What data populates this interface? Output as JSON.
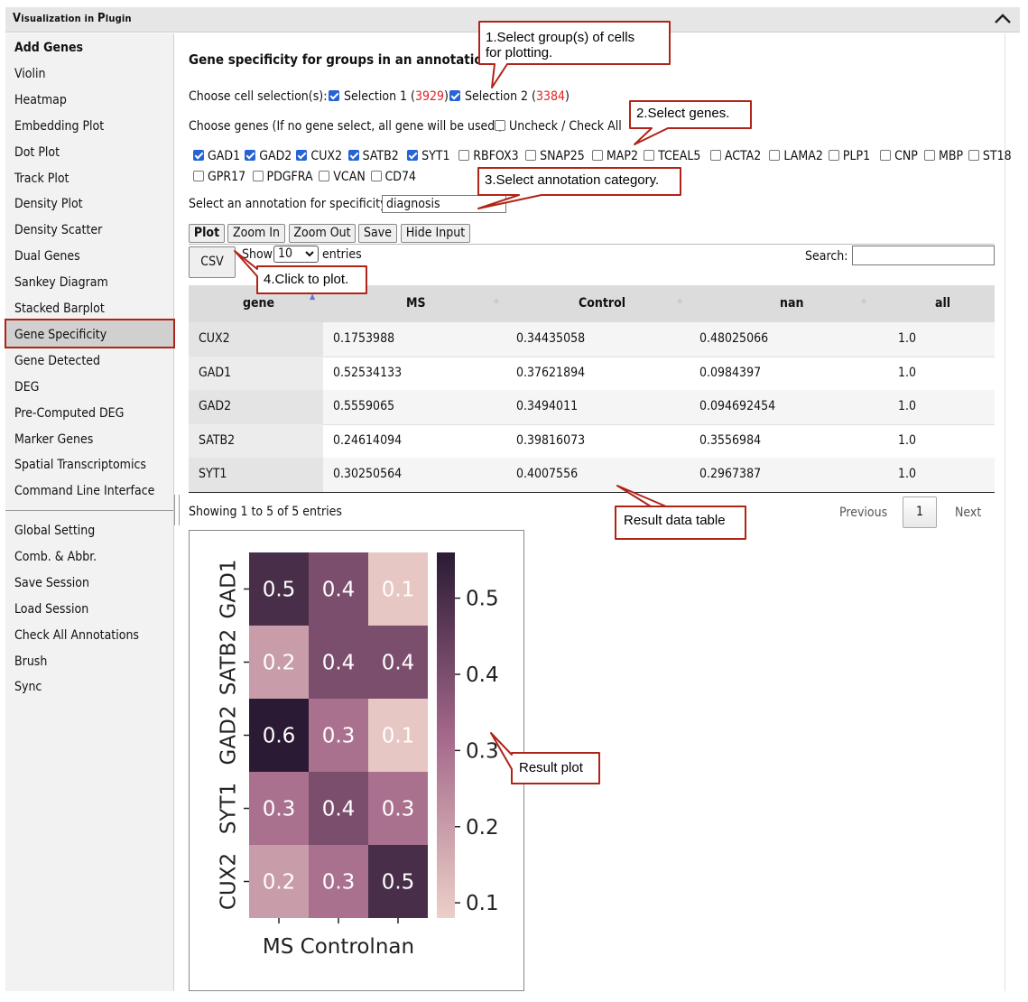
{
  "panel": {
    "title_first": "V",
    "title_rest": "isualization in ",
    "title_p": "P",
    "title_rest2": "lugin"
  },
  "sidebar": {
    "items": [
      "Add Genes",
      "Violin",
      "Heatmap",
      "Embedding Plot",
      "Dot Plot",
      "Track Plot",
      "Density Plot",
      "Density Scatter",
      "Dual Genes",
      "Sankey Diagram",
      "Stacked Barplot",
      "Gene Specificity",
      "Gene Detected",
      "DEG",
      "Pre-Computed DEG",
      "Marker Genes",
      "Spatial Transcriptomics",
      "Command Line Interface"
    ],
    "items2": [
      "Global Setting",
      "Comb. & Abbr.",
      "Save Session",
      "Load Session",
      "Check All Annotations",
      "Brush",
      "Sync"
    ],
    "active": "Gene Specificity"
  },
  "main": {
    "heading": "Gene specificity for groups in an annotation",
    "cell_selection_label": "Choose cell selection(s):",
    "selections": [
      {
        "label": "Selection 1",
        "count": "3929",
        "checked": true
      },
      {
        "label": "Selection 2",
        "count": "3384",
        "checked": true
      }
    ],
    "genes_label": "Choose genes (If no gene select, all gene will be used.):",
    "uncheck_label": "Uncheck / Check All",
    "genes_row1": [
      {
        "name": "GAD1",
        "checked": true
      },
      {
        "name": "GAD2",
        "checked": true
      },
      {
        "name": "CUX2",
        "checked": true
      },
      {
        "name": "SATB2",
        "checked": true
      },
      {
        "name": "SYT1",
        "checked": true
      },
      {
        "name": "RBFOX3",
        "checked": false
      },
      {
        "name": "SNAP25",
        "checked": false
      },
      {
        "name": "MAP2",
        "checked": false
      },
      {
        "name": "TCEAL5",
        "checked": false
      },
      {
        "name": "ACTA2",
        "checked": false
      },
      {
        "name": "LAMA2",
        "checked": false
      },
      {
        "name": "PLP1",
        "checked": false
      },
      {
        "name": "CNP",
        "checked": false
      },
      {
        "name": "MBP",
        "checked": false
      },
      {
        "name": "ST18",
        "checked": false
      }
    ],
    "genes_row2": [
      {
        "name": "GPR17",
        "checked": false
      },
      {
        "name": "PDGFRA",
        "checked": false
      },
      {
        "name": "VCAN",
        "checked": false
      },
      {
        "name": "CD74",
        "checked": false
      }
    ],
    "annotation_label": "Select an annotation for specificity:",
    "annotation_value": "diagnosis",
    "buttons": {
      "plot": "Plot",
      "zoom_in": "Zoom In",
      "zoom_out": "Zoom Out",
      "save": "Save",
      "hide_input": "Hide Input",
      "csv": "CSV"
    },
    "show_label": "Show",
    "entries_value": "10",
    "entries_label": "entries",
    "search_label": "Search:",
    "search_value": "",
    "table": {
      "columns": [
        "gene",
        "MS",
        "Control",
        "nan",
        "all"
      ],
      "rows": [
        [
          "CUX2",
          "0.1753988",
          "0.34435058",
          "0.48025066",
          "1.0"
        ],
        [
          "GAD1",
          "0.52534133",
          "0.37621894",
          "0.0984397",
          "1.0"
        ],
        [
          "GAD2",
          "0.5559065",
          "0.3494011",
          "0.094692454",
          "1.0"
        ],
        [
          "SATB2",
          "0.24614094",
          "0.39816073",
          "0.3556984",
          "1.0"
        ],
        [
          "SYT1",
          "0.30250564",
          "0.4007556",
          "0.2967387",
          "1.0"
        ]
      ]
    },
    "info": "Showing 1 to 5 of 5 entries",
    "pager": {
      "previous": "Previous",
      "page": "1",
      "next": "Next"
    }
  },
  "callouts": {
    "c1_line1": "1.Select group(s) of cells",
    "c1_line2": "for plotting.",
    "c2": "2.Select genes.",
    "c3": "3.Select annotation category.",
    "c4": "4.Click to plot.",
    "c5": "Result data table",
    "c6": "Result plot"
  },
  "colors": {
    "callout_border": "#b02418",
    "heat_low": "#ecd0c8",
    "heat_high": "#2a1a33",
    "active_border": "#b02418"
  },
  "chart_data": {
    "type": "heatmap",
    "rows": [
      "GAD1",
      "SATB2",
      "GAD2",
      "SYT1",
      "CUX2"
    ],
    "columns": [
      "MS",
      "Control",
      "nan"
    ],
    "values": [
      [
        0.5,
        0.4,
        0.1
      ],
      [
        0.2,
        0.4,
        0.4
      ],
      [
        0.6,
        0.3,
        0.1
      ],
      [
        0.3,
        0.4,
        0.3
      ],
      [
        0.2,
        0.3,
        0.5
      ]
    ],
    "labels": [
      [
        "0.5",
        "0.4",
        "0.1"
      ],
      [
        "0.2",
        "0.4",
        "0.4"
      ],
      [
        "0.6",
        "0.3",
        "0.1"
      ],
      [
        "0.3",
        "0.4",
        "0.3"
      ],
      [
        "0.2",
        "0.3",
        "0.5"
      ]
    ],
    "xlabel_text": "MS Controlnan",
    "colorbar_range": [
      0.08,
      0.56
    ],
    "colorbar_ticks": [
      "0.5",
      "0.4",
      "0.3",
      "0.2",
      "0.1"
    ]
  }
}
